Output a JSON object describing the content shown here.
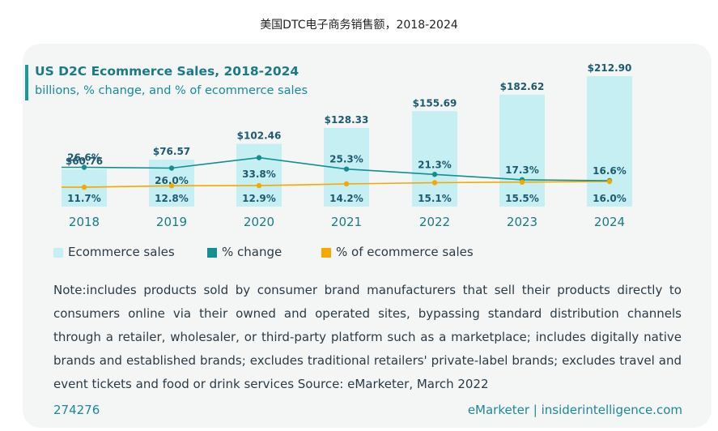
{
  "page_title": "美国DTC电子商务销售额，2018-2024",
  "chart_data": {
    "type": "bar",
    "title": "US D2C Ecommerce Sales, 2018-2024",
    "subtitle": "billions, % change, and % of ecommerce sales",
    "categories": [
      "2018",
      "2019",
      "2020",
      "2021",
      "2022",
      "2023",
      "2024"
    ],
    "series": [
      {
        "name": "Ecommerce sales",
        "type": "bar",
        "values": [
          60.76,
          76.57,
          102.46,
          128.33,
          155.69,
          182.62,
          212.9
        ],
        "labels": [
          "$60.76",
          "$76.57",
          "$102.46",
          "$128.33",
          "$155.69",
          "$182.62",
          "$212.90"
        ],
        "color": "#c6eff3"
      },
      {
        "name": "% change",
        "type": "line",
        "values": [
          26.6,
          26.0,
          33.8,
          25.3,
          21.3,
          17.3,
          16.6
        ],
        "labels": [
          "26.6%",
          "26.0%",
          "33.8%",
          "25.3%",
          "21.3%",
          "17.3%",
          "16.6%"
        ],
        "color": "#148f8f"
      },
      {
        "name": "% of ecommerce sales",
        "type": "line",
        "values": [
          11.7,
          12.8,
          12.9,
          14.2,
          15.1,
          15.5,
          16.0
        ],
        "labels": [
          "11.7%",
          "12.8%",
          "12.9%",
          "14.2%",
          "15.1%",
          "15.5%",
          "16.0%"
        ],
        "color": "#f5a800"
      }
    ],
    "legend_position": "bottom-left",
    "grid": false
  },
  "note": "Note:includes products sold by consumer brand manufacturers that sell their products directly to consumers online via their owned and operated sites, bypassing standard distribution channels through a retailer, wholesaler, or third-party platform such as a marketplace; includes digitally native brands and established brands; excludes traditional retailers' private-label brands; excludes travel and event tickets and food or drink services Source: eMarketer, March 2022",
  "footer": {
    "id": "274276",
    "source": "eMarketer | insiderintelligence.com"
  },
  "colors": {
    "accent": "#1a8a96",
    "bar": "#c6eff3",
    "change_line": "#148f8f",
    "share_line": "#f5a800"
  }
}
